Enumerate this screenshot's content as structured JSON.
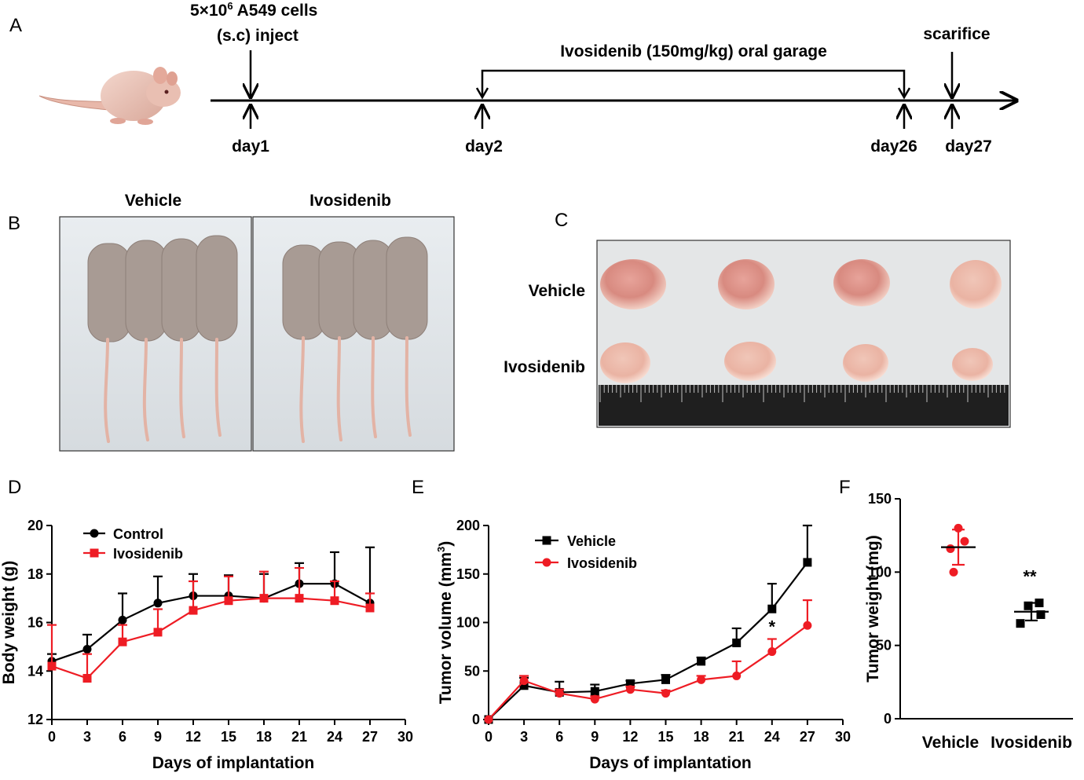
{
  "panels": {
    "a": "A",
    "b": "B",
    "c": "C",
    "d": "D",
    "e": "E",
    "f": "F"
  },
  "timeline": {
    "inject_line1": "5×10",
    "inject_sup": "6",
    "inject_line1_rest": " A549 cells",
    "inject_line2": "(s.c) inject",
    "treatment": "Ivosidenib (150mg/kg) oral garage",
    "scarifice": "scarifice",
    "days": [
      "day1",
      "day2",
      "day26",
      "day27"
    ]
  },
  "photo_b": {
    "labels": [
      "Vehicle",
      "Ivosidenib"
    ]
  },
  "photo_c": {
    "row_labels": [
      "Vehicle",
      "Ivosidenib"
    ]
  },
  "colors": {
    "black": "#000000",
    "red": "#ee1c24"
  },
  "chart_data": [
    {
      "id": "D",
      "type": "line",
      "xlabel": "Days of implantation",
      "ylabel": "Body weight (g)",
      "xlim": [
        0,
        30
      ],
      "ylim": [
        12,
        20
      ],
      "xticks": [
        0,
        3,
        6,
        9,
        12,
        15,
        18,
        21,
        24,
        27,
        30
      ],
      "yticks": [
        12,
        14,
        16,
        18,
        20
      ],
      "legend": "top-left",
      "x": [
        0,
        3,
        6,
        9,
        12,
        15,
        18,
        21,
        24,
        27
      ],
      "series": [
        {
          "name": "Control",
          "color": "#000000",
          "marker": "circle",
          "values": [
            14.4,
            14.9,
            16.1,
            16.8,
            17.1,
            17.1,
            17.0,
            17.6,
            17.6,
            16.8
          ],
          "errors": [
            0.3,
            0.6,
            1.1,
            1.1,
            0.9,
            0.85,
            1.0,
            0.85,
            1.3,
            2.3
          ]
        },
        {
          "name": "Ivosidenib",
          "color": "#ee1c24",
          "marker": "square",
          "values": [
            14.2,
            13.7,
            15.2,
            15.6,
            16.5,
            16.9,
            17.0,
            17.0,
            16.9,
            16.6
          ],
          "errors": [
            1.7,
            1.0,
            0.7,
            0.95,
            1.2,
            1.0,
            1.1,
            1.25,
            0.8,
            0.6
          ]
        }
      ]
    },
    {
      "id": "E",
      "type": "line",
      "xlabel": "Days of implantation",
      "ylabel": "Tumor volume (mm",
      "ylabel_sup": "3",
      "ylabel_end": ")",
      "xlim": [
        0,
        30
      ],
      "ylim": [
        0,
        200
      ],
      "xticks": [
        0,
        3,
        6,
        9,
        12,
        15,
        18,
        21,
        24,
        27,
        30
      ],
      "yticks": [
        0,
        50,
        100,
        150,
        200
      ],
      "legend": "top-left",
      "annotation": "*",
      "x": [
        0,
        3,
        6,
        9,
        12,
        15,
        18,
        21,
        24,
        27
      ],
      "series": [
        {
          "name": "Vehicle",
          "color": "#000000",
          "marker": "square",
          "values": [
            0,
            35,
            28,
            29,
            37,
            41,
            60,
            79,
            114,
            162
          ],
          "errors": [
            0,
            8,
            11,
            7,
            3,
            5,
            4,
            15,
            26,
            38
          ]
        },
        {
          "name": "Ivosidenib",
          "color": "#ee1c24",
          "marker": "circle",
          "values": [
            0,
            40,
            27,
            21,
            31,
            27,
            41,
            45,
            70,
            97
          ],
          "errors": [
            0,
            5,
            4,
            3,
            3,
            3,
            4,
            15,
            13,
            26
          ]
        }
      ]
    },
    {
      "id": "F",
      "type": "scatter",
      "ylabel": "Tumor weight (mg)",
      "ylim": [
        0,
        150
      ],
      "yticks": [
        0,
        50,
        100,
        150
      ],
      "categories": [
        "Vehicle",
        "Ivosidenib"
      ],
      "annotation": "**",
      "groups": [
        {
          "name": "Vehicle",
          "color": "#ee1c24",
          "marker": "circle",
          "points": [
            100,
            116,
            121,
            130
          ],
          "mean": 117,
          "sd": 12
        },
        {
          "name": "Ivosidenib",
          "color": "#000000",
          "marker": "square",
          "points": [
            65,
            71,
            77,
            79
          ],
          "mean": 73,
          "sd": 6
        }
      ]
    }
  ]
}
